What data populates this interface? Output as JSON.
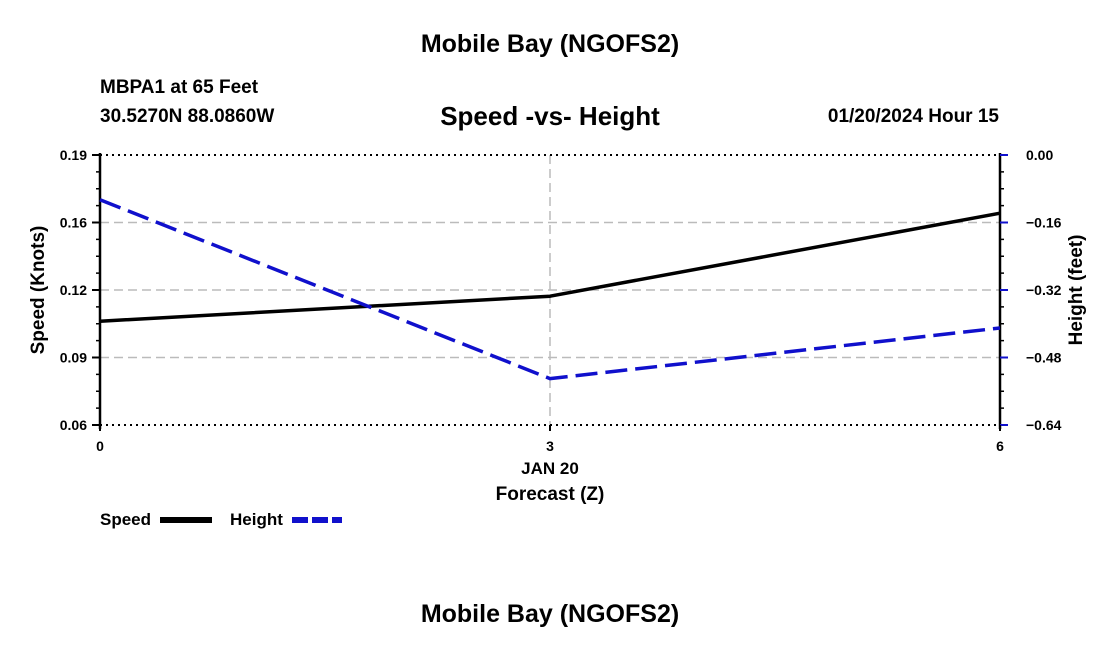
{
  "header": {
    "title": "Mobile Bay (NGOFS2)",
    "station": "MBPA1 at 65 Feet",
    "coords": "30.5270N  88.0860W",
    "datetime": "01/20/2024 Hour 15"
  },
  "footer": {
    "title": "Mobile Bay (NGOFS2)"
  },
  "chart_data": {
    "type": "line",
    "title": "Speed -vs- Height",
    "xlabel": "Forecast (Z)",
    "xsublabel": "JAN 20",
    "x": [
      0,
      3,
      6
    ],
    "xticks": [
      "0",
      "3",
      "6"
    ],
    "xlim": [
      0,
      6
    ],
    "ylabel": "Speed (Knots)",
    "ylim": [
      0.06,
      0.19
    ],
    "yticks": [
      "0.06",
      "0.09",
      "0.12",
      "0.16",
      "0.19"
    ],
    "y2label": "Height (feet)",
    "y2lim": [
      -0.64,
      0.0
    ],
    "y2ticks": [
      "−0.64",
      "−0.48",
      "−0.32",
      "−0.16",
      "0.00"
    ],
    "grid": true,
    "legend_position": "bottom-left",
    "series": [
      {
        "name": "Speed",
        "axis": "left",
        "values": [
          0.11,
          0.122,
          0.162
        ],
        "color": "#000000",
        "style": "solid"
      },
      {
        "name": "Height",
        "axis": "right",
        "values": [
          -0.106,
          -0.53,
          -0.41
        ],
        "color": "#1010cc",
        "style": "dashed"
      }
    ]
  }
}
